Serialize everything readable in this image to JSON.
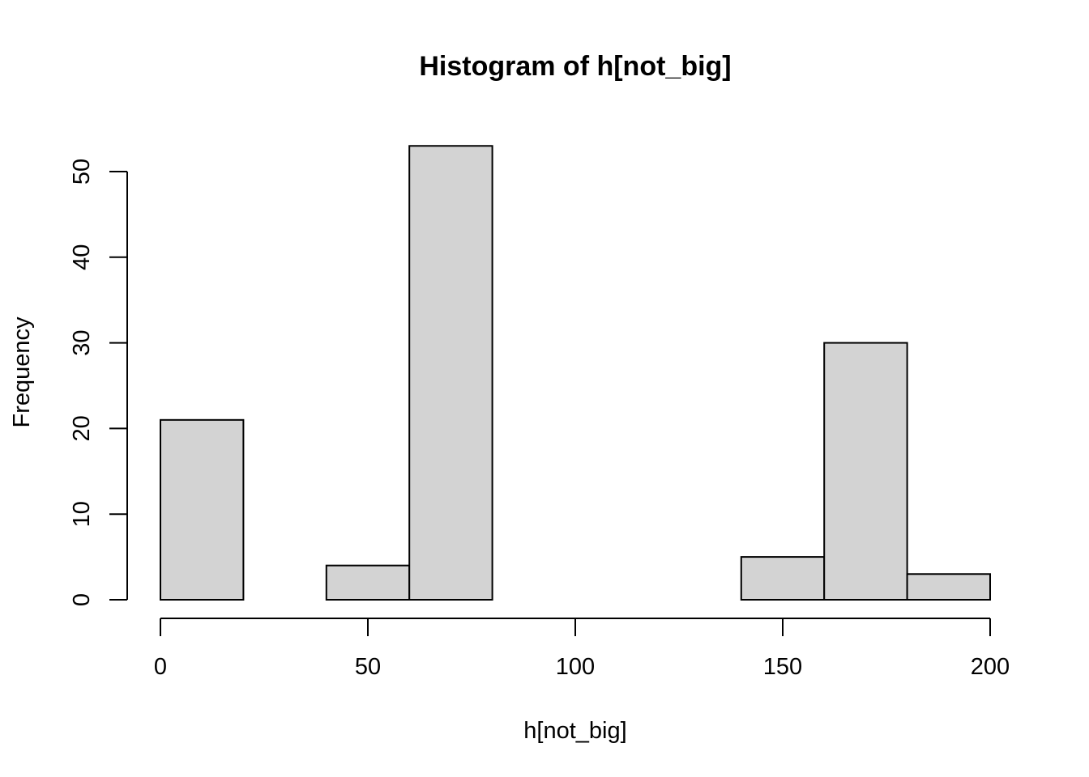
{
  "chart_data": {
    "type": "bar",
    "title": "Histogram of h[not_big]",
    "xlabel": "h[not_big]",
    "ylabel": "Frequency",
    "bins": [
      {
        "from": 0,
        "to": 20,
        "count": 21
      },
      {
        "from": 20,
        "to": 40,
        "count": 0
      },
      {
        "from": 40,
        "to": 60,
        "count": 4
      },
      {
        "from": 60,
        "to": 80,
        "count": 53
      },
      {
        "from": 80,
        "to": 100,
        "count": 0
      },
      {
        "from": 100,
        "to": 120,
        "count": 0
      },
      {
        "from": 120,
        "to": 140,
        "count": 0
      },
      {
        "from": 140,
        "to": 160,
        "count": 5
      },
      {
        "from": 160,
        "to": 180,
        "count": 30
      },
      {
        "from": 180,
        "to": 200,
        "count": 3
      }
    ],
    "xlim": [
      0,
      200
    ],
    "ylim": [
      0,
      53
    ],
    "xticks": [
      0,
      50,
      100,
      150,
      200
    ],
    "yticks": [
      0,
      10,
      20,
      30,
      40,
      50
    ],
    "grid": false,
    "bar_color": "#d3d3d3",
    "border_color": "#000000"
  }
}
